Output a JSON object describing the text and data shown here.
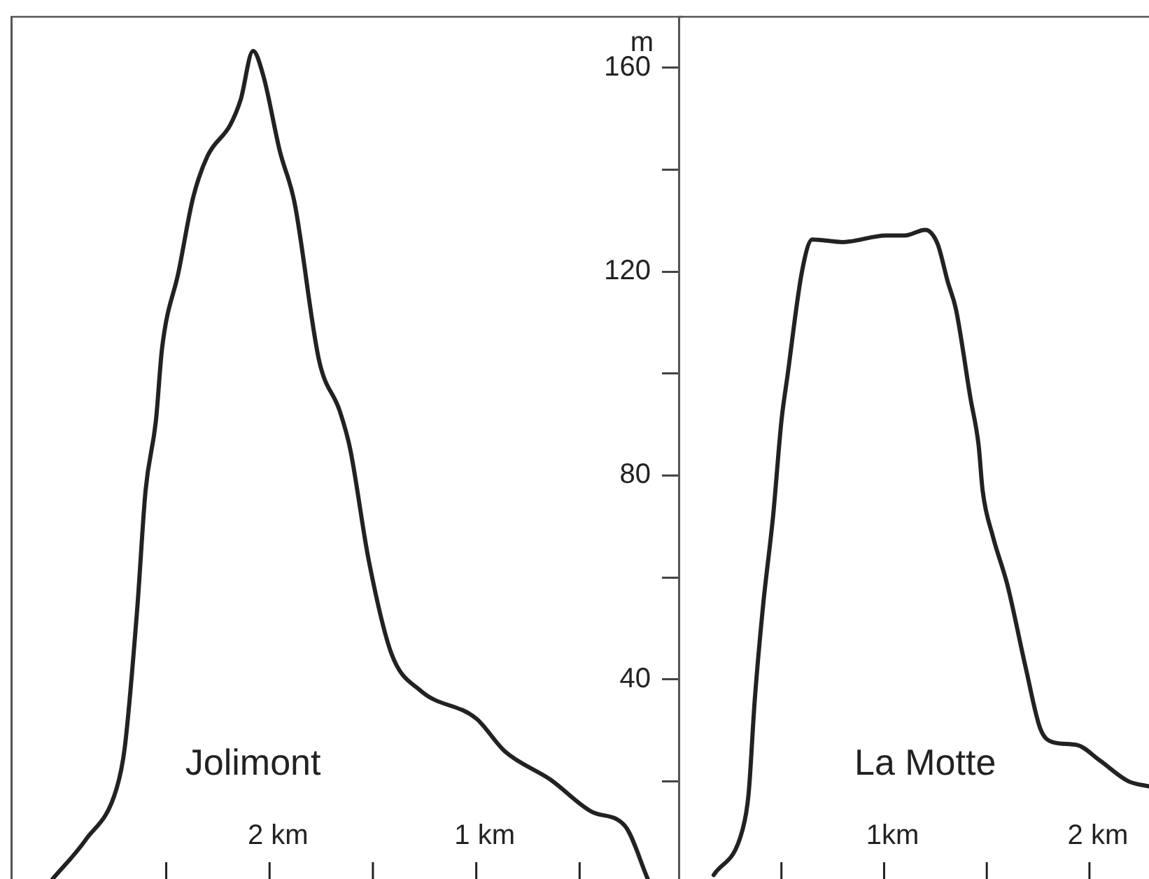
{
  "chart_data": [
    {
      "type": "line",
      "xlim": [
        3.25,
        0
      ],
      "xticks": [
        {
          "value": 2.5,
          "label": null
        },
        {
          "value": 2,
          "label": "2 km"
        },
        {
          "value": 1.5,
          "label": null
        },
        {
          "value": 1,
          "label": "1 km"
        },
        {
          "value": 0.5,
          "label": null
        }
      ],
      "ylim": [
        0,
        170
      ],
      "tick_labels": "x",
      "marker": "none",
      "series": [
        {
          "name": "Jolimont",
          "color": "#222222",
          "x": [
            0.17,
            0.28,
            0.44,
            0.64,
            0.86,
            1.0,
            1.27,
            1.41,
            1.52,
            1.61,
            1.66,
            1.76,
            1.88,
            1.95,
            2.03,
            2.08,
            2.14,
            2.19,
            2.3,
            2.37,
            2.44,
            2.52,
            2.55,
            2.6,
            2.64,
            2.7,
            2.74,
            2.89,
            3.05
          ],
          "values": [
            0.8,
            11.2,
            14,
            20.3,
            25.8,
            32.3,
            37.8,
            45,
            63.3,
            85.2,
            92.6,
            102.5,
            133.7,
            143.6,
            158.4,
            163.3,
            153.7,
            148.8,
            142.7,
            134.5,
            120,
            105,
            90.7,
            77,
            54,
            26.8,
            18.6,
            8.5,
            0.8
          ]
        }
      ]
    },
    {
      "type": "line",
      "xlim": [
        0,
        2.29
      ],
      "xticks": [
        {
          "value": 0.5,
          "label": null
        },
        {
          "value": 1,
          "label": "1km"
        },
        {
          "value": 1.5,
          "label": null
        },
        {
          "value": 2,
          "label": "2 km"
        }
      ],
      "ylim": [
        0,
        170
      ],
      "yticks": [
        {
          "value": 20,
          "label": null
        },
        40,
        {
          "value": 60,
          "label": null
        },
        80,
        {
          "value": 100,
          "label": null
        },
        120,
        {
          "value": 140,
          "label": null
        },
        160
      ],
      "ylabel": "m",
      "marker": "none",
      "series": [
        {
          "name": "La Motte",
          "color": "#222222",
          "x": [
            0.17,
            0.31,
            0.34,
            0.37,
            0.41,
            0.46,
            0.5,
            0.53,
            0.6,
            0.65,
            0.8,
            1.01,
            1.1,
            1.2,
            1.26,
            1.31,
            1.35,
            1.42,
            1.46,
            1.48,
            1.53,
            1.6,
            1.69,
            1.76,
            1.82,
            1.94,
            2.05,
            2.19,
            2.29
          ],
          "values": [
            1.6,
            10.4,
            17.5,
            35.9,
            54.2,
            72.3,
            90.7,
            99.7,
            120,
            126.3,
            125.8,
            127.1,
            127.1,
            128.2,
            125.5,
            118,
            112.6,
            95.3,
            86,
            77,
            68,
            58.6,
            42.2,
            30.4,
            27.7,
            27.1,
            24.1,
            20,
            19
          ]
        }
      ]
    }
  ]
}
